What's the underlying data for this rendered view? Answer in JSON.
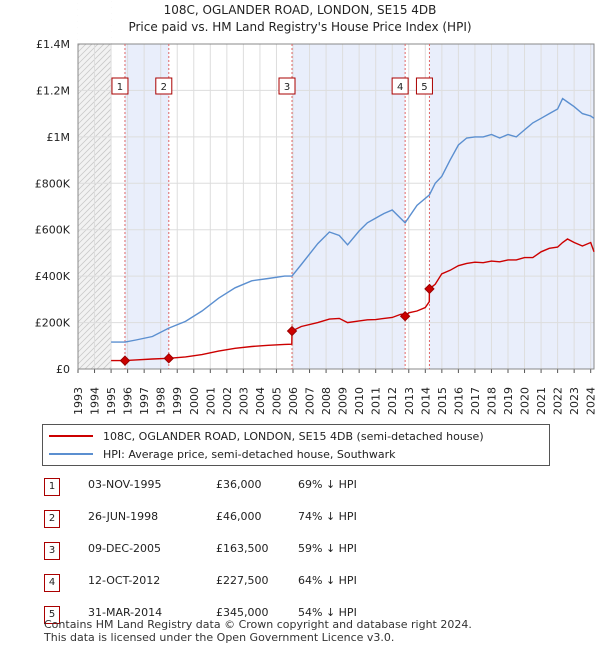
{
  "chart_data": {
    "type": "line",
    "title": "108C, OGLANDER ROAD, LONDON, SE15 4DB",
    "subtitle": "Price paid vs. HM Land Registry's House Price Index (HPI)",
    "xlim": [
      1993,
      2024.2
    ],
    "ylim": [
      0,
      1400000
    ],
    "y_ticks": [
      0,
      200000,
      400000,
      600000,
      800000,
      1000000,
      1200000,
      1400000
    ],
    "y_tick_labels": [
      "£0",
      "£200K",
      "£400K",
      "£600K",
      "£800K",
      "£1M",
      "£1.2M",
      "£1.4M"
    ],
    "x_ticks": [
      1993,
      1994,
      1995,
      1996,
      1997,
      1998,
      1999,
      2000,
      2001,
      2002,
      2003,
      2004,
      2005,
      2006,
      2007,
      2008,
      2009,
      2010,
      2011,
      2012,
      2013,
      2014,
      2015,
      2016,
      2017,
      2018,
      2019,
      2020,
      2021,
      2022,
      2023,
      2024
    ],
    "x_tick_labels": [
      "1993",
      "1994",
      "1995",
      "1996",
      "1997",
      "1998",
      "1999",
      "2000",
      "2001",
      "2002",
      "2003",
      "2004",
      "2005",
      "2006",
      "2007",
      "2008",
      "2009",
      "2010",
      "2011",
      "2012",
      "2013",
      "2014",
      "2015",
      "2016",
      "2017",
      "2018",
      "2019",
      "2020",
      "2021",
      "2022",
      "2023",
      "2024"
    ],
    "shaded_ranges": [
      [
        1995.84,
        1998.49
      ],
      [
        2005.94,
        2012.78
      ],
      [
        2014.25,
        2024.2
      ]
    ],
    "series": [
      {
        "name": "108C, OGLANDER ROAD, LONDON, SE15 4DB (semi-detached house)",
        "color": "#cc0000",
        "x": [
          1995.0,
          1995.84,
          1996.5,
          1997.5,
          1998.49,
          1999.5,
          2000.5,
          2001.5,
          2002.5,
          2003.5,
          2004.5,
          2005.5,
          2005.93,
          2005.94,
          2006.5,
          2007.5,
          2008.2,
          2008.8,
          2009.3,
          2010.0,
          2010.5,
          2011.0,
          2011.5,
          2012.0,
          2012.5,
          2012.77,
          2012.78,
          2013.0,
          2013.5,
          2014.0,
          2014.24,
          2014.25,
          2014.6,
          2015.0,
          2015.5,
          2016.0,
          2016.5,
          2017.0,
          2017.5,
          2018.0,
          2018.5,
          2019.0,
          2019.5,
          2020.0,
          2020.5,
          2021.0,
          2021.5,
          2022.0,
          2022.3,
          2022.6,
          2023.0,
          2023.5,
          2024.0,
          2024.2
        ],
        "y": [
          36000,
          36000,
          39000,
          43000,
          46000,
          52000,
          62000,
          77000,
          89000,
          97000,
          102000,
          106000,
          107000,
          163500,
          183000,
          200000,
          215000,
          218000,
          200000,
          207000,
          212000,
          213000,
          218000,
          222000,
          235000,
          238000,
          227500,
          242000,
          250000,
          265000,
          290000,
          345000,
          365000,
          410000,
          425000,
          445000,
          455000,
          460000,
          458000,
          465000,
          462000,
          470000,
          470000,
          480000,
          480000,
          505000,
          520000,
          525000,
          545000,
          560000,
          545000,
          530000,
          545000,
          505000
        ]
      },
      {
        "name": "HPI: Average price, semi-detached house, Southwark",
        "color": "#5b8fd0",
        "x": [
          1995.0,
          1995.84,
          1996.5,
          1997.5,
          1998.49,
          1999.5,
          2000.5,
          2001.5,
          2002.5,
          2003.5,
          2004.5,
          2005.5,
          2005.94,
          2006.5,
          2007.5,
          2008.2,
          2008.8,
          2009.3,
          2010.0,
          2010.5,
          2011.0,
          2011.5,
          2012.0,
          2012.78,
          2013.5,
          2014.25,
          2014.6,
          2015.0,
          2015.5,
          2016.0,
          2016.5,
          2017.0,
          2017.5,
          2018.0,
          2018.5,
          2019.0,
          2019.5,
          2020.0,
          2020.5,
          2021.0,
          2021.5,
          2022.0,
          2022.3,
          2022.6,
          2023.0,
          2023.5,
          2024.0,
          2024.2
        ],
        "y": [
          116000,
          116000,
          125000,
          140000,
          176000,
          205000,
          250000,
          305000,
          350000,
          380000,
          390000,
          400000,
          400000,
          450000,
          540000,
          590000,
          575000,
          535000,
          595000,
          630000,
          650000,
          670000,
          685000,
          630000,
          705000,
          750000,
          800000,
          830000,
          900000,
          965000,
          995000,
          1000000,
          1000000,
          1010000,
          995000,
          1010000,
          1000000,
          1030000,
          1060000,
          1080000,
          1100000,
          1120000,
          1165000,
          1150000,
          1130000,
          1100000,
          1090000,
          1080000
        ]
      }
    ],
    "sales": [
      {
        "label": "1",
        "x": 1995.84,
        "y": 36000
      },
      {
        "label": "2",
        "x": 1998.49,
        "y": 46000
      },
      {
        "label": "3",
        "x": 2005.94,
        "y": 163500
      },
      {
        "label": "4",
        "x": 2012.78,
        "y": 227500
      },
      {
        "label": "5",
        "x": 2014.25,
        "y": 345000
      }
    ],
    "grid": true
  },
  "legend": {
    "property_label": "108C, OGLANDER ROAD, LONDON, SE15 4DB (semi-detached house)",
    "hpi_label": "HPI: Average price, semi-detached house, Southwark",
    "property_color": "#cc0000",
    "hpi_color": "#5b8fd0"
  },
  "transactions": [
    {
      "num": "1",
      "date": "03-NOV-1995",
      "price": "£36,000",
      "hpi": "69% ↓ HPI"
    },
    {
      "num": "2",
      "date": "26-JUN-1998",
      "price": "£46,000",
      "hpi": "74% ↓ HPI"
    },
    {
      "num": "3",
      "date": "09-DEC-2005",
      "price": "£163,500",
      "hpi": "59% ↓ HPI"
    },
    {
      "num": "4",
      "date": "12-OCT-2012",
      "price": "£227,500",
      "hpi": "64% ↓ HPI"
    },
    {
      "num": "5",
      "date": "31-MAR-2014",
      "price": "£345,000",
      "hpi": "54% ↓ HPI"
    }
  ],
  "footer": {
    "line1": "Contains HM Land Registry data © Crown copyright and database right 2024.",
    "line2": "This data is licensed under the Open Government Licence v3.0."
  }
}
